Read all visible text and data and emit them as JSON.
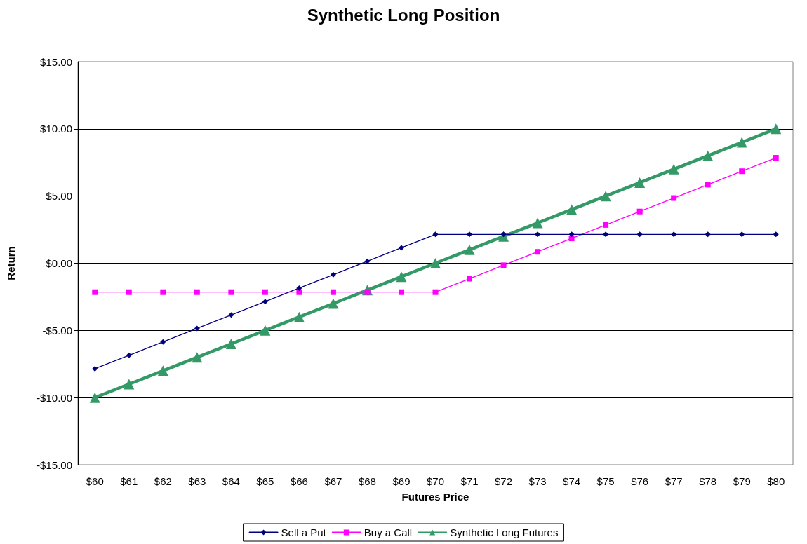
{
  "chart_data": {
    "type": "line",
    "title": "Synthetic Long Position",
    "xlabel": "Futures Price",
    "ylabel": "Return",
    "categories": [
      "$60",
      "$61",
      "$62",
      "$63",
      "$64",
      "$65",
      "$66",
      "$67",
      "$68",
      "$69",
      "$70",
      "$71",
      "$72",
      "$73",
      "$74",
      "$75",
      "$76",
      "$77",
      "$78",
      "$79",
      "$80"
    ],
    "series": [
      {
        "name": "Sell a Put",
        "color": "#000080",
        "marker": "diamond",
        "values": [
          -7.85,
          -6.85,
          -5.85,
          -4.85,
          -3.85,
          -2.85,
          -1.85,
          -0.85,
          0.15,
          1.15,
          2.15,
          2.15,
          2.15,
          2.15,
          2.15,
          2.15,
          2.15,
          2.15,
          2.15,
          2.15,
          2.15
        ]
      },
      {
        "name": "Buy a Call",
        "color": "#ff00ff",
        "marker": "square",
        "values": [
          -2.15,
          -2.15,
          -2.15,
          -2.15,
          -2.15,
          -2.15,
          -2.15,
          -2.15,
          -2.15,
          -2.15,
          -2.15,
          -1.15,
          -0.15,
          0.85,
          1.85,
          2.85,
          3.85,
          4.85,
          5.85,
          6.85,
          7.85
        ]
      },
      {
        "name": "Synthetic Long Futures",
        "color": "#339966",
        "marker": "triangle",
        "values": [
          -10,
          -9,
          -8,
          -7,
          -6,
          -5,
          -4,
          -3,
          -2,
          -1,
          0,
          1,
          2,
          3,
          4,
          5,
          6,
          7,
          8,
          9,
          10
        ]
      }
    ],
    "ylim": [
      -15,
      15
    ],
    "yticks": [
      {
        "value": -15,
        "label": "-$15.00"
      },
      {
        "value": -10,
        "label": "-$10.00"
      },
      {
        "value": -5,
        "label": "-$5.00"
      },
      {
        "value": 0,
        "label": "$0.00"
      },
      {
        "value": 5,
        "label": "$5.00"
      },
      {
        "value": 10,
        "label": "$10.00"
      },
      {
        "value": 15,
        "label": "$15.00"
      }
    ],
    "grid": "y",
    "legend": "bottom",
    "line_style": "solid"
  }
}
